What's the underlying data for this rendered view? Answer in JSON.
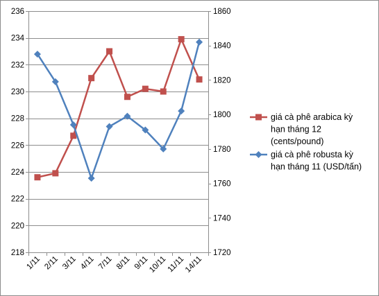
{
  "chart_data": {
    "type": "line",
    "title": "",
    "xlabel": "",
    "ylabel": "",
    "categories": [
      "1/11",
      "2/11",
      "3/11",
      "4/11",
      "7/11",
      "8/11",
      "9/11",
      "10/11",
      "11/11",
      "14/11"
    ],
    "y_left": {
      "min": 218,
      "max": 236,
      "step": 2,
      "ticks": [
        "218",
        "220",
        "222",
        "224",
        "226",
        "228",
        "230",
        "232",
        "234",
        "236"
      ]
    },
    "y_right": {
      "min": 1720,
      "max": 1860,
      "step": 20,
      "ticks": [
        "1720",
        "1740",
        "1760",
        "1780",
        "1800",
        "1820",
        "1840",
        "1860"
      ]
    },
    "grid": true,
    "legend_position": "right",
    "series": [
      {
        "name_lines": [
          "giá cà phê arabica kỳ",
          "hạn tháng 12",
          "(cents/pound)"
        ],
        "axis": "left",
        "color": "#C0504D",
        "marker": "square",
        "values": [
          223.6,
          223.9,
          226.7,
          231.0,
          233.0,
          229.6,
          230.2,
          230.0,
          233.9,
          230.9
        ]
      },
      {
        "name_lines": [
          "giá cà phê robusta kỳ",
          "hạn tháng 11 (USD/tấn)"
        ],
        "axis": "right",
        "color": "#4F81BD",
        "marker": "diamond",
        "values": [
          1835,
          1819,
          1794,
          1763,
          1793,
          1799,
          1791,
          1780,
          1802,
          1842
        ]
      }
    ]
  }
}
